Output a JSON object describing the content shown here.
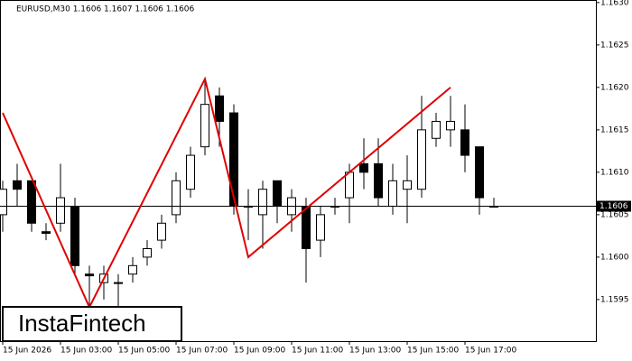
{
  "chart_data": {
    "type": "candlestick",
    "title": "EURUSD,M30  1.1606 1.1607 1.1606 1.1606",
    "watermark": "InstaFintech",
    "categories": [
      "15 Jun 2026",
      null,
      null,
      null,
      "15 Jun 03:00",
      null,
      null,
      null,
      "15 Jun 05:00",
      null,
      null,
      null,
      "15 Jun 07:00",
      null,
      null,
      null,
      "15 Jun 09:00",
      null,
      null,
      null,
      "15 Jun 11:00",
      null,
      null,
      null,
      "15 Jun 13:00",
      null,
      null,
      null,
      "15 Jun 15:00",
      null,
      null,
      null,
      "15 Jun 17:00",
      null,
      null
    ],
    "open": [
      1.1605,
      1.1609,
      1.1609,
      1.1603,
      1.1604,
      1.1606,
      1.1598,
      1.1597,
      1.1597,
      1.1598,
      1.16,
      1.1602,
      1.1605,
      1.1608,
      1.1613,
      1.1619,
      1.1617,
      1.1606,
      1.1605,
      1.1609,
      1.1605,
      1.1606,
      1.1602,
      1.1606,
      1.1607,
      1.1611,
      1.1611,
      1.1606,
      1.1608,
      1.1608,
      1.1614,
      1.1615,
      1.1615,
      1.1613,
      1.1606
    ],
    "high": [
      1.1609,
      1.1611,
      1.1609,
      1.1604,
      1.1611,
      1.1607,
      1.1599,
      1.1599,
      1.1598,
      1.16,
      1.1602,
      1.1605,
      1.161,
      1.1613,
      1.1621,
      1.162,
      1.1618,
      1.1608,
      1.1609,
      1.1609,
      1.1608,
      1.1607,
      1.1606,
      1.1607,
      1.1611,
      1.1614,
      1.1614,
      1.1611,
      1.1612,
      1.1619,
      1.1617,
      1.1619,
      1.1618,
      1.1613,
      1.1607
    ],
    "low": [
      1.1603,
      1.1606,
      1.1603,
      1.1602,
      1.1603,
      1.1598,
      1.1594,
      1.1595,
      1.1594,
      1.1597,
      1.1599,
      1.1601,
      1.1604,
      1.1607,
      1.1612,
      1.1613,
      1.1605,
      1.1602,
      1.1601,
      1.1604,
      1.1603,
      1.1597,
      1.16,
      1.1605,
      1.1604,
      1.1608,
      1.1606,
      1.1605,
      1.1604,
      1.1607,
      1.1613,
      1.1613,
      1.161,
      1.1605,
      1.1606
    ],
    "close": [
      1.1608,
      1.1608,
      1.1604,
      1.16028,
      1.1607,
      1.1599,
      1.15978,
      1.1598,
      1.1597,
      1.1599,
      1.1601,
      1.1604,
      1.1609,
      1.1612,
      1.1618,
      1.1616,
      1.1606,
      1.1606,
      1.1608,
      1.1606,
      1.1607,
      1.1601,
      1.1605,
      1.1606,
      1.161,
      1.161,
      1.1607,
      1.1609,
      1.1609,
      1.1615,
      1.1616,
      1.1616,
      1.1612,
      1.1607,
      1.1606
    ],
    "up_color": "#ffffff",
    "down_color": "#000000",
    "last_price": 1.1606,
    "pattern": {
      "color": "#e00000",
      "points": [
        {
          "x": 0,
          "y": 1.1617
        },
        {
          "x": 6,
          "y": 1.15941
        },
        {
          "x": 14,
          "y": 1.1621
        },
        {
          "x": 17,
          "y": 1.16
        },
        {
          "x": 31,
          "y": 1.162
        }
      ]
    },
    "ylim": [
      1.15901,
      1.16303
    ],
    "yticks": [
      1.1595,
      {
        "value": 1.16,
        "label": "1.1600"
      },
      1.1605,
      {
        "value": 1.161,
        "label": "1.1610"
      },
      1.1615,
      {
        "value": 1.162,
        "label": "1.1620"
      },
      1.1625,
      {
        "value": 1.163,
        "label": "1.1630"
      }
    ]
  }
}
